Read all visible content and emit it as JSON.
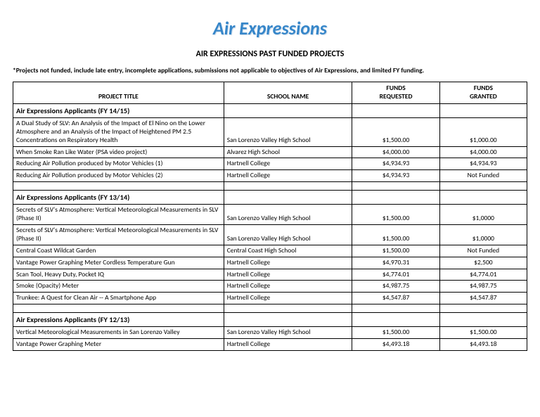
{
  "header": {
    "title": "Air Expressions",
    "subtitle": "AIR EXPRESSIONS PAST FUNDED PROJECTS",
    "note": "*Projects not funded, include late entry, incomplete applications, submissions not applicable to objectives of Air Expressions, and limited FY funding."
  },
  "table": {
    "columns": {
      "project": "PROJECT TITLE",
      "school": "SCHOOL NAME",
      "requested_l1": "FUNDS",
      "requested_l2": "REQUESTED",
      "granted_l1": "FUNDS",
      "granted_l2": "GRANTED"
    },
    "sections": {
      "s1": {
        "heading": "Air Expressions Applicants (FY 14/15)",
        "rows": [
          {
            "project": "A Dual Study of SLV:  An Analysis of the Impact of El Nino on the Lower Atmosphere and an Analysis of the Impact of Heightened PM 2.5 Concentrations on Respiratory Health",
            "school": "San Lorenzo Valley High School",
            "requested": "$1,500.00",
            "granted": "$1,000.00"
          },
          {
            "project": "When Smoke Ran Like Water (PSA video project)",
            "school": "Alvarez High School",
            "requested": "$4,000.00",
            "granted": "$4,000.00"
          },
          {
            "project": "Reducing Air Pollution produced by Motor Vehicles (1)",
            "school": "Hartnell College",
            "requested": "$4,934.93",
            "granted": "$4,934.93"
          },
          {
            "project": "Reducing Air Pollution produced by Motor Vehicles (2)",
            "school": "Hartnell College",
            "requested": "$4,934.93",
            "granted": "Not Funded"
          }
        ]
      },
      "s2": {
        "heading": "Air Expressions Applicants (FY 13/14)",
        "rows": [
          {
            "project": "Secrets of SLV's Atmosphere: Vertical Meteorological Measurements in SLV (Phase II)",
            "school": "San Lorenzo Valley High School",
            "requested": "$1,500.00",
            "granted": "$1,0000"
          },
          {
            "project": "Secrets of SLV's Atmosphere: Vertical Meteorological Measurements in SLV  (Phase II)",
            "school": "San Lorenzo Valley High School",
            "requested": "$1,500.00",
            "granted": "$1,0000"
          },
          {
            "project": "Central Coast Wildcat Garden",
            "school": "Central Coast High School",
            "requested": "$1,500.00",
            "granted": "Not Funded"
          },
          {
            "project": "Vantage Power Graphing Meter Cordless Temperature Gun",
            "school": "Hartnell College",
            "requested": "$4,970.31",
            "granted": "$2,500"
          },
          {
            "project": "Scan Tool, Heavy Duty, Pocket  IQ",
            "school": "Hartnell College",
            "requested": "$4,774.01",
            "granted": "$4,774.01"
          },
          {
            "project": "Smoke (Opacity) Meter",
            "school": "Hartnell College",
            "requested": "$4,987.75",
            "granted": "$4,987.75"
          },
          {
            "project": "Trunkee:  A Quest for Clean Air -- A Smartphone App",
            "school": "Hartnell College",
            "requested": "$4,547.87",
            "granted": "$4,547.87"
          }
        ]
      },
      "s3": {
        "heading": "Air Expressions Applicants (FY 12/13)",
        "rows": [
          {
            "project": "Vertical Meteorological Measurements in San Lorenzo Valley",
            "school": "San Lorenzo Valley High School",
            "requested": "$1,500.00",
            "granted": "$1,500.00"
          },
          {
            "project": "Vantage Power Graphing Meter",
            "school": "Hartnell College",
            "requested": "$4,493.18",
            "granted": "$4,493.18"
          }
        ]
      }
    }
  }
}
